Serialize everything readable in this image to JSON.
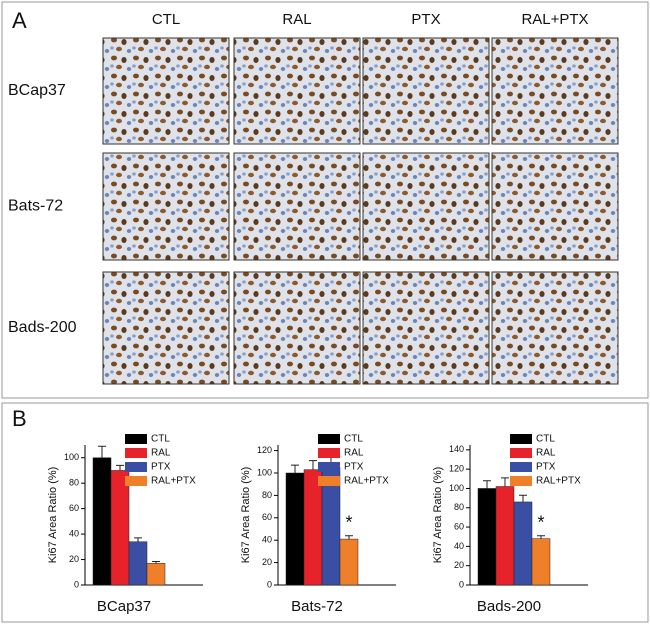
{
  "figure": {
    "panel_a": {
      "label": "A",
      "columns": [
        "CTL",
        "RAL",
        "PTX",
        "RAL+PTX"
      ],
      "rows": [
        "BCap37",
        "Bats-72",
        "Bads-200"
      ]
    },
    "panel_b": {
      "label": "B"
    }
  },
  "chart_data": [
    {
      "type": "bar",
      "xlabel": "BCap37",
      "ylabel": "Ki67 Area Ratio (%)",
      "categories": [
        "CTL",
        "RAL",
        "PTX",
        "RAL+PTX"
      ],
      "values": [
        100,
        90,
        34,
        17
      ],
      "errors": [
        9,
        4,
        3,
        1.5
      ],
      "colors": [
        "#000000",
        "#e8222a",
        "#3a4fa3",
        "#f07f2a"
      ],
      "ylim": [
        0,
        110
      ],
      "yticks": [
        0,
        20,
        40,
        60,
        80,
        100
      ]
    },
    {
      "type": "bar",
      "xlabel": "Bats-72",
      "ylabel": "Ki67 Area Ratio (%)",
      "categories": [
        "CTL",
        "RAL",
        "PTX",
        "RAL+PTX"
      ],
      "values": [
        100,
        103,
        105,
        41
      ],
      "errors": [
        7,
        8,
        14,
        3
      ],
      "colors": [
        "#000000",
        "#e8222a",
        "#3a4fa3",
        "#f07f2a"
      ],
      "ylim": [
        0,
        125
      ],
      "yticks": [
        0,
        20,
        40,
        60,
        80,
        100,
        120
      ],
      "annotation": "*"
    },
    {
      "type": "bar",
      "xlabel": "Bads-200",
      "ylabel": "Ki67 Area Ratio (%)",
      "categories": [
        "CTL",
        "RAL",
        "PTX",
        "RAL+PTX"
      ],
      "values": [
        100,
        102,
        86,
        48
      ],
      "errors": [
        8,
        9,
        7,
        3
      ],
      "colors": [
        "#000000",
        "#e8222a",
        "#3a4fa3",
        "#f07f2a"
      ],
      "ylim": [
        0,
        145
      ],
      "yticks": [
        0,
        20,
        40,
        60,
        80,
        100,
        120,
        140
      ],
      "annotation": "*"
    }
  ]
}
